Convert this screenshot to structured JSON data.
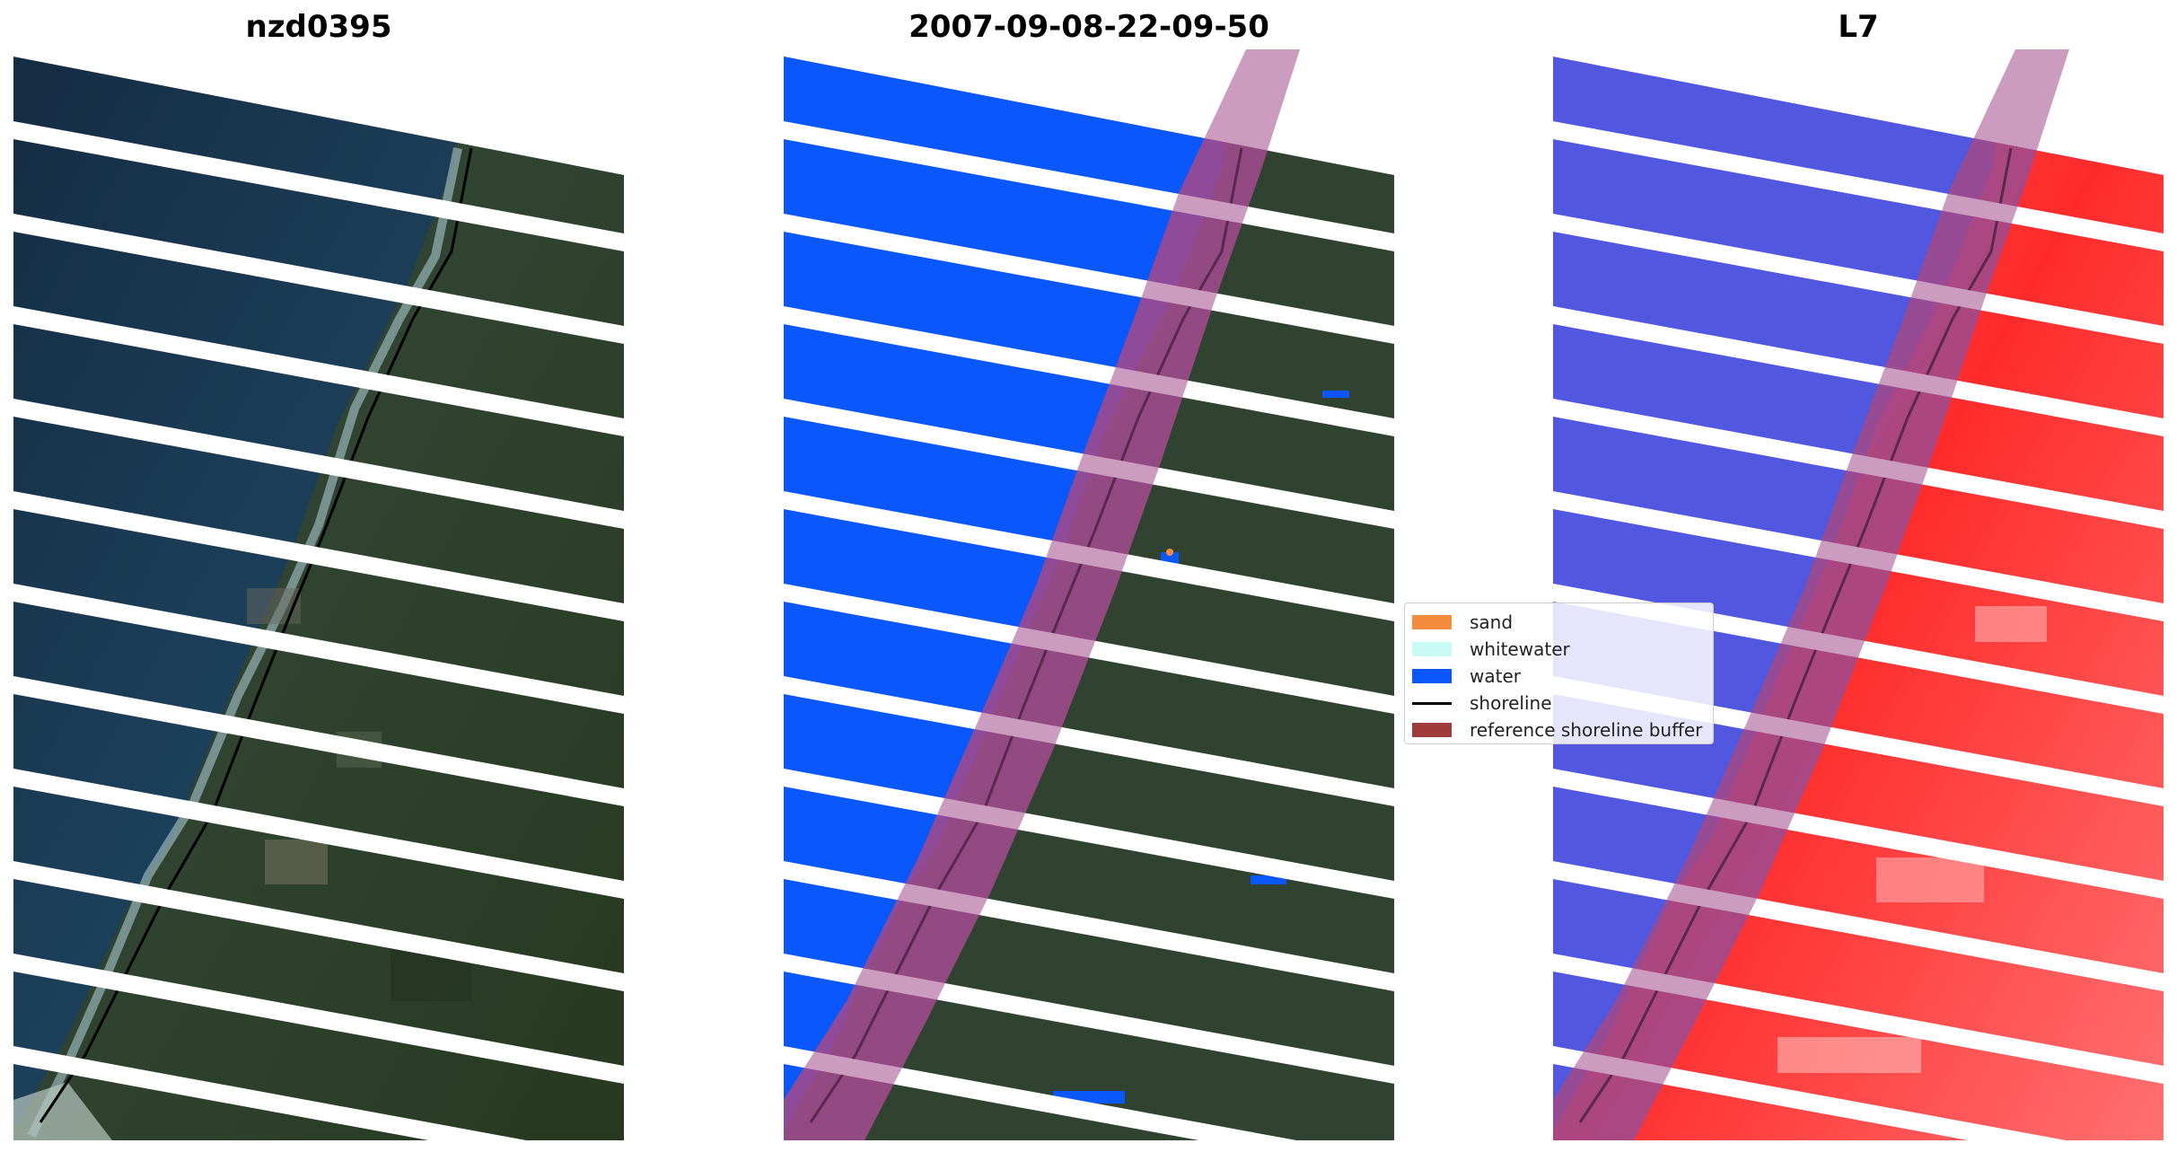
{
  "panels": [
    {
      "title": "nzd0395",
      "style": "rgb"
    },
    {
      "title": "2007-09-08-22-09-50",
      "style": "classified"
    },
    {
      "title": "L7",
      "style": "index"
    }
  ],
  "legend": {
    "items": [
      {
        "label": "sand",
        "kind": "swatch",
        "color": "#f58b3c"
      },
      {
        "label": "whitewater",
        "kind": "swatch",
        "color": "#c8fbf5"
      },
      {
        "label": "water",
        "kind": "swatch",
        "color": "#0a57fc"
      },
      {
        "label": "shoreline",
        "kind": "line",
        "color": "#000000"
      },
      {
        "label": "reference shoreline buffer",
        "kind": "swatch",
        "color": "#9e3a3a"
      }
    ]
  },
  "colors": {
    "ocean": "#1d3b55",
    "surf": "#3c6a80",
    "land": "#3a4b3a",
    "water_class": "#0a57fc",
    "buffer": "#a04a8c",
    "index_water": "#5257e0",
    "index_land": "#ff2b2b",
    "shoreline": "#000000"
  }
}
